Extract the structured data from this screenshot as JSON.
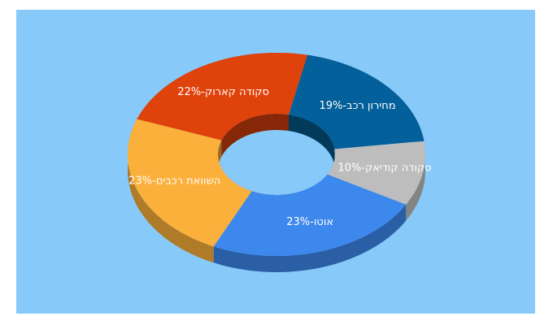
{
  "chart_data": {
    "type": "donut3d",
    "values": [
      19,
      10,
      23,
      23,
      22
    ],
    "value_labels": [
      "מחירון רכב-19%",
      "סקודה קודיאק-10%",
      "אוטו-23%",
      "השוואת רכבים-23%",
      "סקודה קארוק-22%"
    ],
    "colors": [
      "#03609a",
      "#bdbdbd",
      "#3d88ec",
      "#fbb03b",
      "#e0420b"
    ]
  }
}
